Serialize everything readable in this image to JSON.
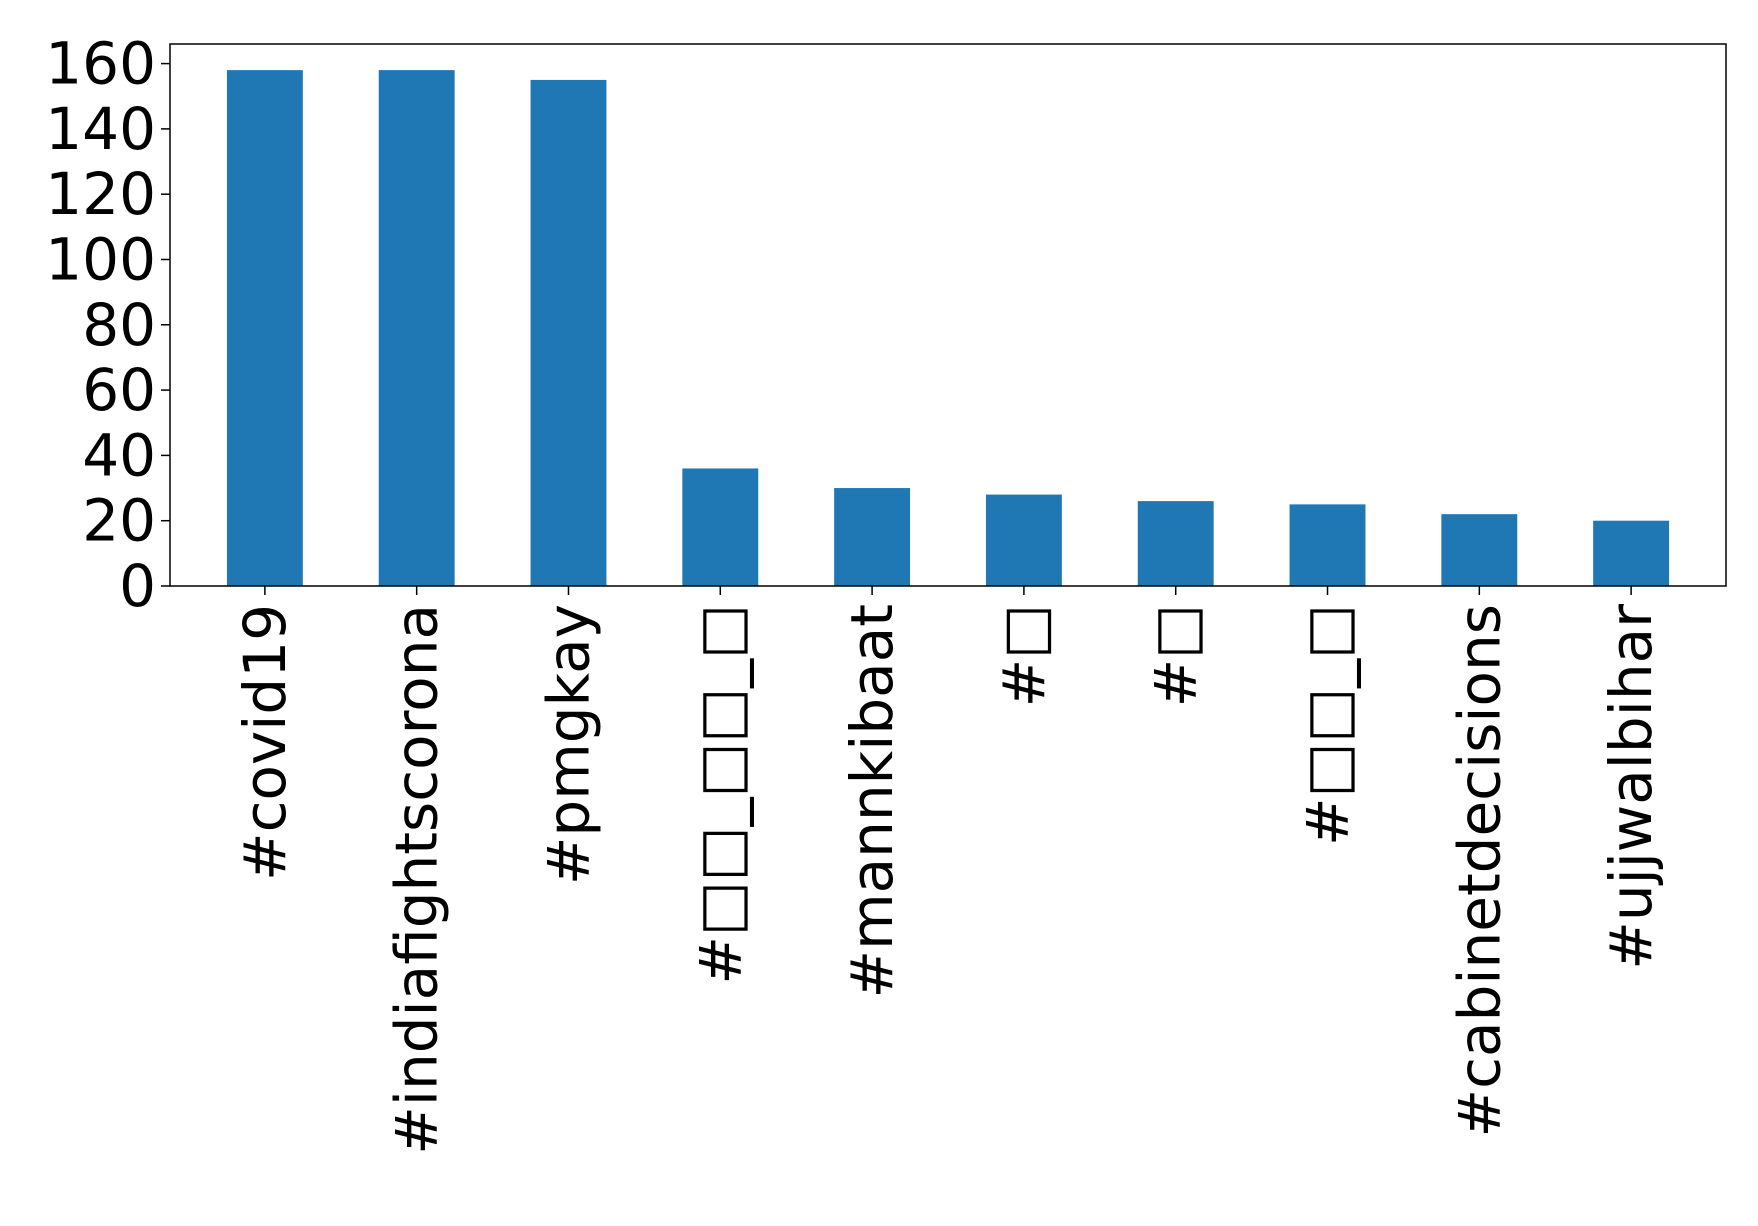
{
  "chart_data": {
    "type": "bar",
    "title": "",
    "xlabel": "",
    "ylabel": "",
    "categories": [
      "#covid19",
      "#indiafightscorona",
      "#pmgkay",
      "#□□_□□_□",
      "#mannkibaat",
      "#□",
      "#□",
      "#□□_□",
      "#cabinetdecisions",
      "#ujjwalbihar"
    ],
    "values": [
      158,
      158,
      155,
      36,
      30,
      28,
      26,
      25,
      22,
      20
    ],
    "ylim": [
      0,
      166
    ],
    "yticks": [
      0,
      20,
      40,
      60,
      80,
      100,
      120,
      140,
      160
    ],
    "bar_color": "#1f77b4",
    "grid": false,
    "legend": "none"
  }
}
